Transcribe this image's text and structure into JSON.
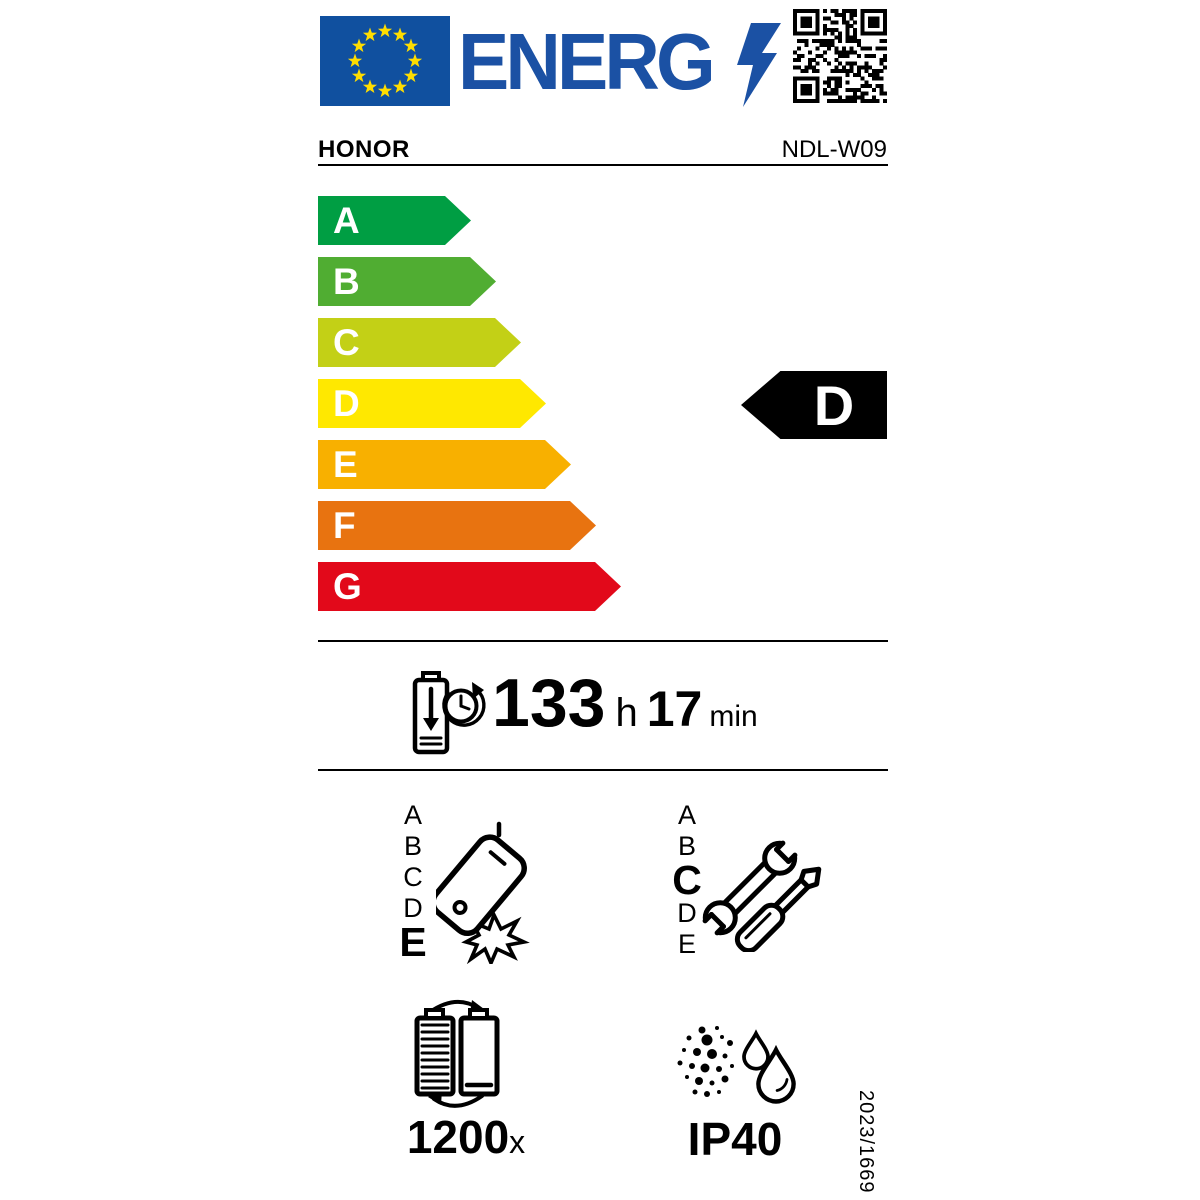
{
  "header": {
    "logo_text": "ENERG",
    "logo_color": "#1b51a4",
    "eu_flag": {
      "blue": "#10509f",
      "yellow": "#ffdd00"
    },
    "qr_icon": "qr-code",
    "bolt_icon": "lightning-bolt"
  },
  "product": {
    "brand": "HONOR",
    "model": "NDL-W09"
  },
  "efficiency": {
    "classes": [
      {
        "label": "A",
        "color": "#009e43"
      },
      {
        "label": "B",
        "color": "#50ad32"
      },
      {
        "label": "C",
        "color": "#c3d016"
      },
      {
        "label": "D",
        "color": "#ffe800"
      },
      {
        "label": "E",
        "color": "#f8b000"
      },
      {
        "label": "F",
        "color": "#e87310"
      },
      {
        "label": "G",
        "color": "#e2091a"
      }
    ],
    "rated_class": "D",
    "indicator_color": "#000000"
  },
  "endurance": {
    "icon": "battery-clock",
    "hours": "133",
    "hours_unit": "h",
    "minutes": "17",
    "minutes_unit": "min"
  },
  "drop_resistance": {
    "icon": "phone-drop",
    "scale": [
      "A",
      "B",
      "C",
      "D",
      "E"
    ],
    "rated": "E"
  },
  "repairability": {
    "icon": "wrench-screwdriver",
    "scale": [
      "A",
      "B",
      "C",
      "D",
      "E"
    ],
    "rated": "C"
  },
  "battery_cycles": {
    "icon": "battery-cycle",
    "value": "1200",
    "multiplier": "x"
  },
  "ingress_protection": {
    "icon": "dust-water-drops",
    "rating": "IP40"
  },
  "regulation_number": "2023/1669"
}
